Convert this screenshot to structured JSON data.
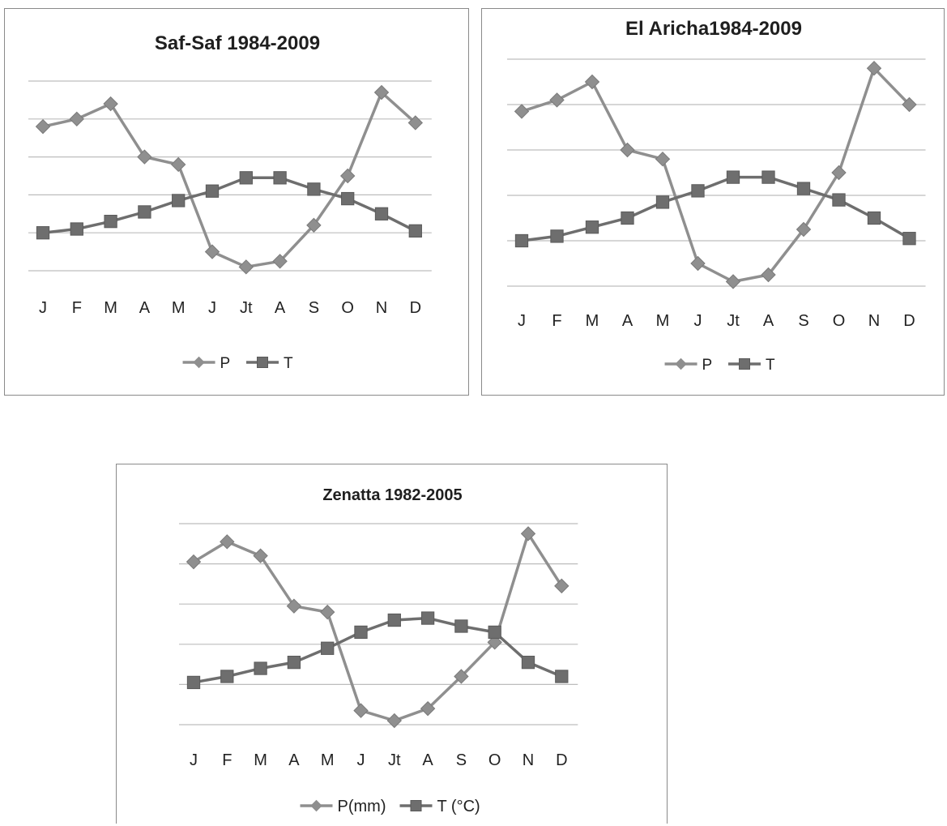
{
  "colors": {
    "P": "#8f8f8f",
    "T": "#6e6e6e",
    "grid": "#bdbdbd",
    "border": "#8a8a8a"
  },
  "chart_data": [
    {
      "type": "line",
      "title": "Saf-Saf 1984-2009",
      "categories": [
        "J",
        "F",
        "M",
        "A",
        "M",
        "J",
        "Jt",
        "A",
        "S",
        "O",
        "N",
        "D"
      ],
      "ylim": [
        0,
        5
      ],
      "grid": true,
      "legend_position": "bottom",
      "series": [
        {
          "name": "P",
          "marker": "diamond",
          "values": [
            3.8,
            4.0,
            4.4,
            3.0,
            2.8,
            0.5,
            0.1,
            0.25,
            1.2,
            2.5,
            4.7,
            3.9
          ]
        },
        {
          "name": "T",
          "marker": "square",
          "values": [
            1.0,
            1.1,
            1.3,
            1.55,
            1.85,
            2.1,
            2.45,
            2.45,
            2.15,
            1.9,
            1.5,
            1.05
          ]
        }
      ]
    },
    {
      "type": "line",
      "title": "El Aricha1984-2009",
      "categories": [
        "J",
        "F",
        "M",
        "A",
        "M",
        "J",
        "Jt",
        "A",
        "S",
        "O",
        "N",
        "D"
      ],
      "ylim": [
        0,
        5
      ],
      "grid": true,
      "legend_position": "bottom",
      "series": [
        {
          "name": "P",
          "marker": "diamond",
          "values": [
            3.85,
            4.1,
            4.5,
            3.0,
            2.8,
            0.5,
            0.1,
            0.25,
            1.25,
            2.5,
            4.8,
            4.0
          ]
        },
        {
          "name": "T",
          "marker": "square",
          "values": [
            1.0,
            1.1,
            1.3,
            1.5,
            1.85,
            2.1,
            2.4,
            2.4,
            2.15,
            1.9,
            1.5,
            1.05
          ]
        }
      ]
    },
    {
      "type": "line",
      "title": "Zenatta 1982-2005",
      "categories": [
        "J",
        "F",
        "M",
        "A",
        "M",
        "J",
        "Jt",
        "A",
        "S",
        "O",
        "N",
        "D"
      ],
      "ylim": [
        0,
        5
      ],
      "grid": true,
      "legend_position": "bottom",
      "series": [
        {
          "name": "P(mm)",
          "marker": "diamond",
          "values": [
            4.05,
            4.55,
            4.2,
            2.95,
            2.8,
            0.35,
            0.1,
            0.4,
            1.2,
            2.05,
            4.75,
            3.45
          ]
        },
        {
          "name": "T (°C)",
          "marker": "square",
          "values": [
            1.05,
            1.2,
            1.4,
            1.55,
            1.9,
            2.3,
            2.6,
            2.65,
            2.45,
            2.3,
            1.55,
            1.2
          ]
        }
      ]
    }
  ]
}
